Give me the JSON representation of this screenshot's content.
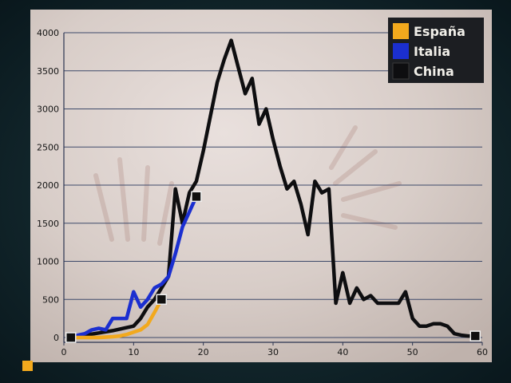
{
  "chart_data": {
    "type": "line",
    "title": "",
    "xlabel": "",
    "ylabel": "",
    "xlim": [
      0,
      60
    ],
    "ylim": [
      0,
      4000
    ],
    "x_ticks": [
      0,
      10,
      20,
      30,
      40,
      50,
      60
    ],
    "y_ticks": [
      0,
      500,
      1000,
      1500,
      2000,
      2500,
      3000,
      3500,
      4000
    ],
    "grid": "horizontal",
    "legend_position": "top-right",
    "series": [
      {
        "name": "China",
        "color": "#0e0e10",
        "end_marker": "square",
        "points": [
          [
            1,
            0
          ],
          [
            3,
            30
          ],
          [
            5,
            60
          ],
          [
            7,
            90
          ],
          [
            9,
            130
          ],
          [
            10,
            150
          ],
          [
            11,
            250
          ],
          [
            12,
            400
          ],
          [
            13,
            500
          ],
          [
            14,
            650
          ],
          [
            15,
            800
          ],
          [
            16,
            1950
          ],
          [
            17,
            1500
          ],
          [
            18,
            1900
          ],
          [
            19,
            2050
          ],
          [
            20,
            2450
          ],
          [
            21,
            2900
          ],
          [
            22,
            3350
          ],
          [
            23,
            3650
          ],
          [
            24,
            3900
          ],
          [
            25,
            3550
          ],
          [
            26,
            3200
          ],
          [
            27,
            3400
          ],
          [
            28,
            2800
          ],
          [
            29,
            3000
          ],
          [
            30,
            2600
          ],
          [
            31,
            2250
          ],
          [
            32,
            1950
          ],
          [
            33,
            2050
          ],
          [
            34,
            1750
          ],
          [
            35,
            1350
          ],
          [
            36,
            2050
          ],
          [
            37,
            1900
          ],
          [
            38,
            1950
          ],
          [
            39,
            450
          ],
          [
            40,
            850
          ],
          [
            41,
            450
          ],
          [
            42,
            650
          ],
          [
            43,
            500
          ],
          [
            44,
            550
          ],
          [
            45,
            450
          ],
          [
            46,
            450
          ],
          [
            47,
            450
          ],
          [
            48,
            450
          ],
          [
            49,
            600
          ],
          [
            50,
            250
          ],
          [
            51,
            150
          ],
          [
            52,
            150
          ],
          [
            53,
            180
          ],
          [
            54,
            180
          ],
          [
            55,
            150
          ],
          [
            56,
            50
          ],
          [
            57,
            30
          ],
          [
            58,
            20
          ],
          [
            59,
            20
          ]
        ]
      },
      {
        "name": "Italia",
        "color": "#1b2fd0",
        "end_marker": "square",
        "points": [
          [
            1,
            0
          ],
          [
            2,
            30
          ],
          [
            3,
            50
          ],
          [
            4,
            100
          ],
          [
            5,
            120
          ],
          [
            6,
            100
          ],
          [
            7,
            250
          ],
          [
            8,
            250
          ],
          [
            9,
            250
          ],
          [
            10,
            600
          ],
          [
            11,
            400
          ],
          [
            12,
            500
          ],
          [
            13,
            650
          ],
          [
            14,
            700
          ],
          [
            15,
            800
          ],
          [
            16,
            1100
          ],
          [
            17,
            1450
          ],
          [
            18,
            1650
          ],
          [
            19,
            1850
          ]
        ]
      },
      {
        "name": "España",
        "color": "#f2a91d",
        "end_marker": "square",
        "points": [
          [
            1,
            0
          ],
          [
            3,
            0
          ],
          [
            5,
            0
          ],
          [
            7,
            10
          ],
          [
            8,
            20
          ],
          [
            9,
            40
          ],
          [
            10,
            70
          ],
          [
            11,
            100
          ],
          [
            12,
            170
          ],
          [
            13,
            330
          ],
          [
            14,
            500
          ]
        ]
      }
    ]
  }
}
